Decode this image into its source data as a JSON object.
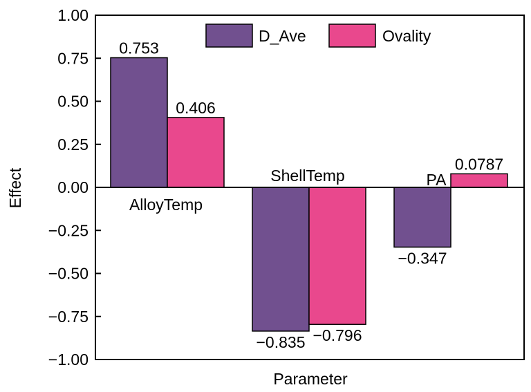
{
  "chart_data": {
    "type": "bar",
    "categories": [
      "AlloyTemp",
      "ShellTemp",
      "PA"
    ],
    "series": [
      {
        "name": "D_Ave",
        "values": [
          0.753,
          -0.835,
          -0.347
        ],
        "color": "#71508f"
      },
      {
        "name": "Ovality",
        "values": [
          0.406,
          -0.796,
          0.0787
        ],
        "color": "#e9488d"
      }
    ],
    "data_labels": [
      [
        "0.753",
        "0.406"
      ],
      [
        "−0.835",
        "−0.796"
      ],
      [
        "−0.347",
        "0.0787"
      ]
    ],
    "xlabel": "Parameter",
    "ylabel": "Effect",
    "ylim": [
      -1.0,
      1.0
    ],
    "yticks": [
      -1.0,
      -0.75,
      -0.5,
      -0.25,
      0.0,
      0.25,
      0.5,
      0.75,
      1.0
    ],
    "ytick_labels": [
      "−1.00",
      "−0.75",
      "−0.50",
      "−0.25",
      "0.00",
      "0.25",
      "0.50",
      "0.75",
      "1.00"
    ],
    "legend_position": "top-right",
    "grid": false
  }
}
